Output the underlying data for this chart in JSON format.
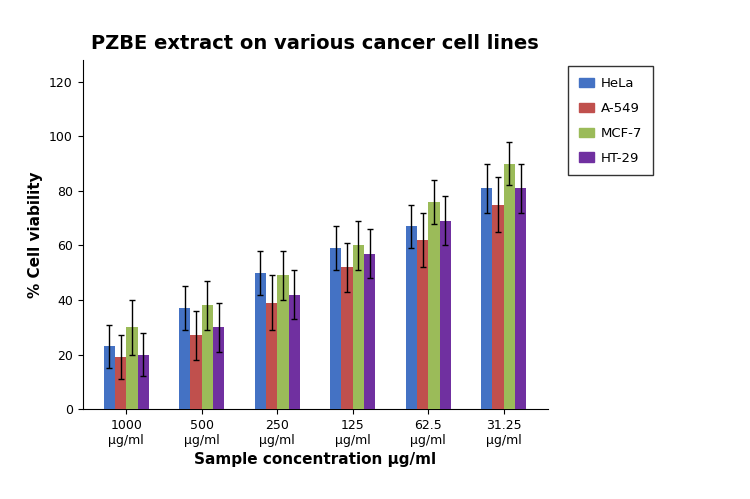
{
  "title": "PZBE extract on various cancer cell lines",
  "xlabel": "Sample concentration μg/ml",
  "ylabel": "% Cell viability",
  "categories": [
    "1000\nμg/ml",
    "500\nμg/ml",
    "250\nμg/ml",
    "125\nμg/ml",
    "62.5\nμg/ml",
    "31.25\nμg/ml"
  ],
  "series_order": [
    "HeLa",
    "A-549",
    "MCF-7",
    "HT-29"
  ],
  "series": {
    "HeLa": {
      "values": [
        23,
        37,
        50,
        59,
        67,
        81
      ],
      "errors": [
        8,
        8,
        8,
        8,
        8,
        9
      ],
      "color": "#4472C4"
    },
    "A-549": {
      "values": [
        19,
        27,
        39,
        52,
        62,
        75
      ],
      "errors": [
        8,
        9,
        10,
        9,
        10,
        10
      ],
      "color": "#C0504D"
    },
    "MCF-7": {
      "values": [
        30,
        38,
        49,
        60,
        76,
        90
      ],
      "errors": [
        10,
        9,
        9,
        9,
        8,
        8
      ],
      "color": "#9BBB59"
    },
    "HT-29": {
      "values": [
        20,
        30,
        42,
        57,
        69,
        81
      ],
      "errors": [
        8,
        9,
        9,
        9,
        9,
        9
      ],
      "color": "#7030A0"
    }
  },
  "ylim": [
    0,
    128
  ],
  "yticks": [
    0,
    20,
    40,
    60,
    80,
    100,
    120
  ],
  "bar_width": 0.15,
  "legend_labels": [
    "HeLa",
    "A-549",
    "MCF-7",
    "HT-29"
  ],
  "legend_colors": [
    "#4472C4",
    "#C0504D",
    "#9BBB59",
    "#7030A0"
  ],
  "background_color": "#ffffff",
  "title_fontsize": 14,
  "axis_fontsize": 11,
  "tick_fontsize": 9
}
